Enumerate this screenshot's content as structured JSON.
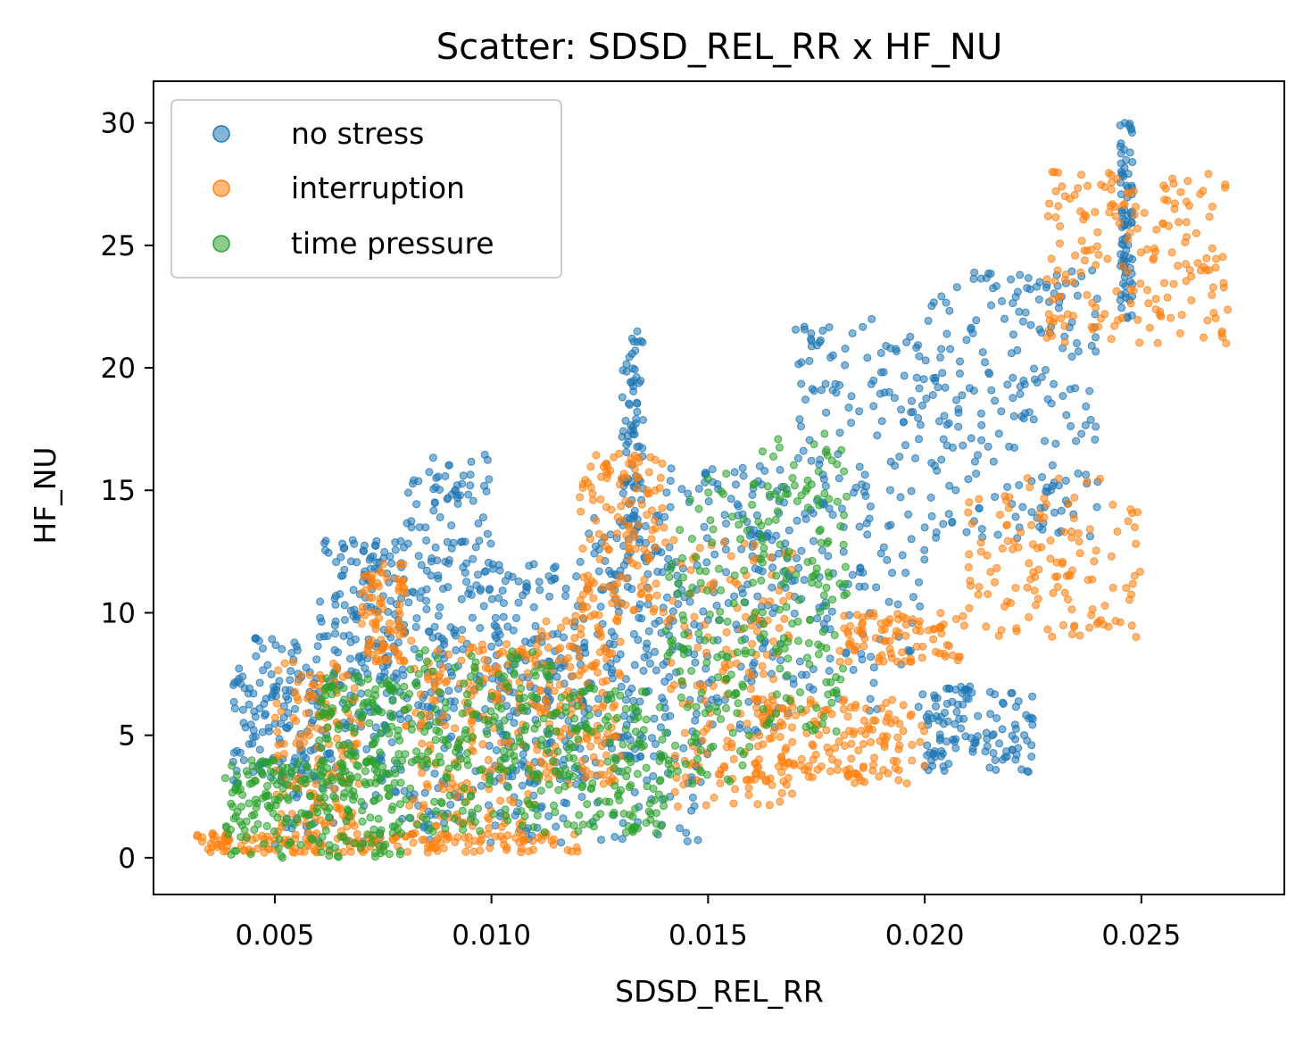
{
  "chart_data": {
    "type": "scatter",
    "title": "Scatter: SDSD_REL_RR x HF_NU",
    "xlabel": "SDSD_REL_RR",
    "ylabel": "HF_NU",
    "xlim": [
      0.0022,
      0.0283
    ],
    "ylim": [
      -1.5,
      31.7
    ],
    "xticks": [
      0.005,
      0.01,
      0.015,
      0.02,
      0.025
    ],
    "xtick_labels": [
      "0.005",
      "0.010",
      "0.015",
      "0.020",
      "0.025"
    ],
    "yticks": [
      0,
      5,
      10,
      15,
      20,
      25,
      30
    ],
    "ytick_labels": [
      "0",
      "5",
      "10",
      "15",
      "20",
      "25",
      "30"
    ],
    "grid": false,
    "legend_position": "top-left",
    "series": [
      {
        "name": "no stress",
        "color": "#1f77b4",
        "generator": {
          "seed": 11,
          "segments": [
            {
              "x": [
                0.004,
                0.006
              ],
              "y": [
                3.0,
                9.0
              ],
              "n": 140
            },
            {
              "x": [
                0.006,
                0.008
              ],
              "y": [
                5.0,
                13.0
              ],
              "n": 180
            },
            {
              "x": [
                0.008,
                0.01
              ],
              "y": [
                5.0,
                16.5
              ],
              "n": 180
            },
            {
              "x": [
                0.01,
                0.012
              ],
              "y": [
                3.0,
                12.0
              ],
              "n": 160
            },
            {
              "x": [
                0.012,
                0.014
              ],
              "y": [
                4.0,
                14.0
              ],
              "n": 160
            },
            {
              "x": [
                0.013,
                0.0135
              ],
              "y": [
                13.0,
                21.5
              ],
              "n": 80
            },
            {
              "x": [
                0.014,
                0.017
              ],
              "y": [
                5.0,
                16.0
              ],
              "n": 200
            },
            {
              "x": [
                0.017,
                0.02
              ],
              "y": [
                6.0,
                22.0
              ],
              "n": 200
            },
            {
              "x": [
                0.02,
                0.024
              ],
              "y": [
                13.0,
                24.0
              ],
              "n": 220
            },
            {
              "x": [
                0.02,
                0.0225
              ],
              "y": [
                3.5,
                7.0
              ],
              "n": 120
            },
            {
              "x": [
                0.0245,
                0.0248
              ],
              "y": [
                22.0,
                30.0
              ],
              "n": 80
            },
            {
              "x": [
                0.005,
                0.015
              ],
              "y": [
                0.5,
                5.0
              ],
              "n": 200
            }
          ]
        }
      },
      {
        "name": "interruption",
        "color": "#ff7f0e",
        "generator": {
          "seed": 23,
          "segments": [
            {
              "x": [
                0.0032,
                0.012
              ],
              "y": [
                0.2,
                1.0
              ],
              "n": 180
            },
            {
              "x": [
                0.005,
                0.007
              ],
              "y": [
                1.0,
                8.0
              ],
              "n": 140
            },
            {
              "x": [
                0.007,
                0.008
              ],
              "y": [
                8.0,
                12.0
              ],
              "n": 80
            },
            {
              "x": [
                0.008,
                0.011
              ],
              "y": [
                1.0,
                9.0
              ],
              "n": 180
            },
            {
              "x": [
                0.011,
                0.013
              ],
              "y": [
                3.0,
                10.0
              ],
              "n": 150
            },
            {
              "x": [
                0.012,
                0.014
              ],
              "y": [
                10.0,
                16.5
              ],
              "n": 130
            },
            {
              "x": [
                0.014,
                0.017
              ],
              "y": [
                2.0,
                13.0
              ],
              "n": 170
            },
            {
              "x": [
                0.016,
                0.02
              ],
              "y": [
                3.0,
                6.5
              ],
              "n": 160
            },
            {
              "x": [
                0.018,
                0.021
              ],
              "y": [
                8.0,
                10.0
              ],
              "n": 90
            },
            {
              "x": [
                0.021,
                0.025
              ],
              "y": [
                9.0,
                15.5
              ],
              "n": 130
            },
            {
              "x": [
                0.0228,
                0.027
              ],
              "y": [
                21.0,
                28.0
              ],
              "n": 180
            }
          ]
        }
      },
      {
        "name": "time pressure",
        "color": "#2ca02c",
        "generator": {
          "seed": 37,
          "segments": [
            {
              "x": [
                0.0038,
                0.008
              ],
              "y": [
                0.0,
                4.0
              ],
              "n": 220
            },
            {
              "x": [
                0.006,
                0.008
              ],
              "y": [
                3.0,
                7.5
              ],
              "n": 120
            },
            {
              "x": [
                0.008,
                0.0115
              ],
              "y": [
                1.0,
                8.5
              ],
              "n": 200
            },
            {
              "x": [
                0.0115,
                0.014
              ],
              "y": [
                1.0,
                7.0
              ],
              "n": 140
            },
            {
              "x": [
                0.014,
                0.016
              ],
              "y": [
                3.0,
                16.0
              ],
              "n": 120
            },
            {
              "x": [
                0.016,
                0.0182
              ],
              "y": [
                5.0,
                17.5
              ],
              "n": 150
            }
          ]
        }
      }
    ]
  }
}
